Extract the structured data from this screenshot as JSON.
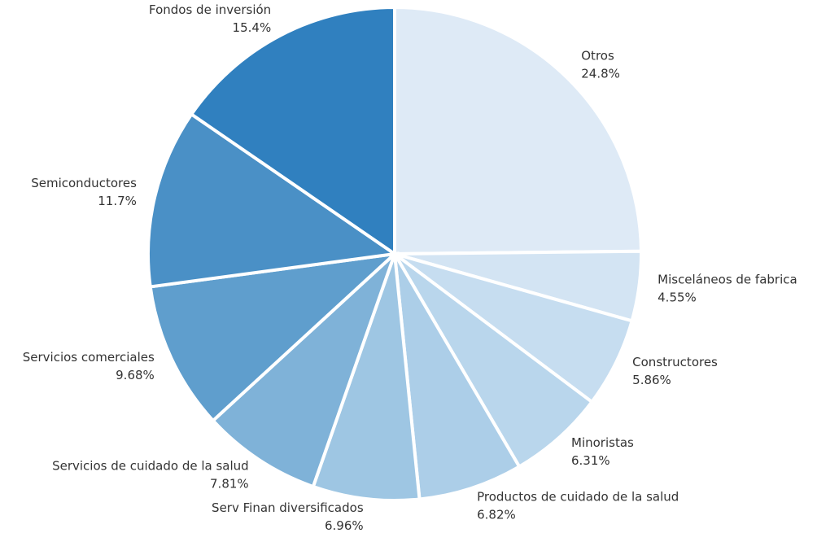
{
  "chart_data": {
    "type": "pie",
    "categories": [
      "Otros",
      "Misceláneos de fabrica",
      "Constructores",
      "Minoristas",
      "Productos de cuidado de la salud",
      "Serv Finan diversificados",
      "Servicios de cuidado de la salud",
      "Servicios comerciales",
      "Semiconductores",
      "Fondos de inversión"
    ],
    "values": [
      24.8,
      4.55,
      5.86,
      6.31,
      6.82,
      6.96,
      7.81,
      9.68,
      11.7,
      15.4
    ],
    "value_labels": [
      "24.8%",
      "4.55%",
      "5.86%",
      "6.31%",
      "6.82%",
      "6.96%",
      "7.81%",
      "9.68%",
      "11.7%",
      "15.4%"
    ],
    "colors": [
      "#deeaf6",
      "#d3e4f3",
      "#c6ddf0",
      "#b9d6ec",
      "#accee8",
      "#9ec6e3",
      "#7fb2d8",
      "#5f9ecd",
      "#4a90c6",
      "#3080bf"
    ]
  }
}
